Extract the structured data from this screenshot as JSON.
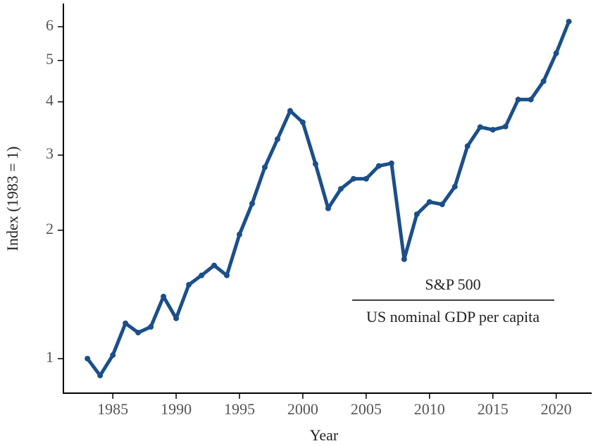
{
  "chart_data": {
    "type": "line",
    "xlabel": "Year",
    "ylabel": "Index (1983 = 1)",
    "annotation": {
      "numerator": "S&P 500",
      "denominator": "US nominal GDP per capita"
    },
    "x": [
      1983,
      1984,
      1985,
      1986,
      1987,
      1988,
      1989,
      1990,
      1991,
      1992,
      1993,
      1994,
      1995,
      1996,
      1997,
      1998,
      1999,
      2000,
      2001,
      2002,
      2003,
      2004,
      2005,
      2006,
      2007,
      2008,
      2009,
      2010,
      2011,
      2012,
      2013,
      2014,
      2015,
      2016,
      2017,
      2018,
      2019,
      2020,
      2021
    ],
    "series": [
      {
        "color": "#1b4f8a",
        "values": [
          1.0,
          0.913,
          1.019,
          1.21,
          1.151,
          1.187,
          1.398,
          1.243,
          1.49,
          1.567,
          1.654,
          1.567,
          1.955,
          2.31,
          2.81,
          3.27,
          3.81,
          3.58,
          2.86,
          2.25,
          2.5,
          2.64,
          2.64,
          2.83,
          2.87,
          1.71,
          2.18,
          2.33,
          2.3,
          2.53,
          3.15,
          3.49,
          3.44,
          3.5,
          4.05,
          4.05,
          4.47,
          5.2,
          6.17
        ]
      }
    ],
    "xlim": [
      1981.1,
      2022.8
    ],
    "xticks": [
      1985,
      1990,
      1995,
      2000,
      2005,
      2010,
      2015,
      2020
    ],
    "ylim": [
      0.83,
      6.8
    ],
    "yticks": [
      1,
      2,
      3,
      4,
      5,
      6
    ],
    "log_y": true,
    "grid": false
  }
}
